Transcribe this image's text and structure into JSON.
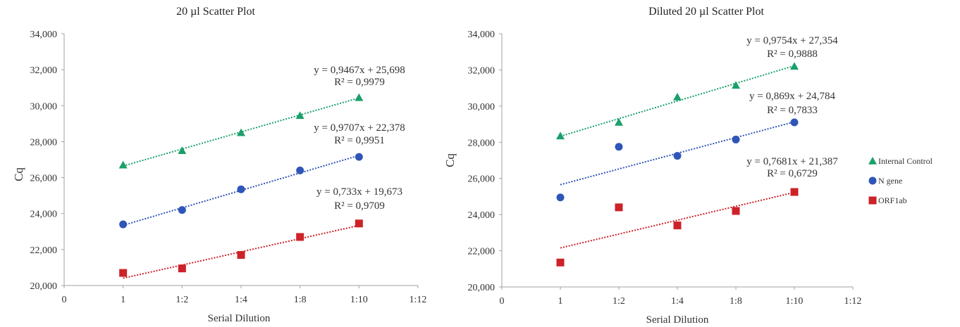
{
  "chart_data": [
    {
      "type": "scatter",
      "title": "20 µl Scatter Plot",
      "xlabel": "Serial Dilution",
      "ylabel": "Cq",
      "x_ticks": [
        "0",
        "1",
        "1:2",
        "1:4",
        "1:8",
        "1:10",
        "1:12"
      ],
      "categories": [
        "1",
        "1:2",
        "1:4",
        "1:8",
        "1:10"
      ],
      "y_ticks": [
        "20,000",
        "22,000",
        "24,000",
        "26,000",
        "28,000",
        "30,000",
        "32,000",
        "34,000"
      ],
      "ylim": [
        20,
        34
      ],
      "series": [
        {
          "name": "Internal Control",
          "marker": "triangle",
          "color": "#1aa06a",
          "values": [
            26.7,
            27.5,
            28.5,
            29.45,
            30.45
          ],
          "trendline": {
            "slope": 0.9467,
            "intercept": 25.698
          }
        },
        {
          "name": "N gene",
          "marker": "circle",
          "color": "#2f55b8",
          "values": [
            23.4,
            24.2,
            25.35,
            26.4,
            27.15
          ],
          "trendline": {
            "slope": 0.9707,
            "intercept": 22.378
          }
        },
        {
          "name": "ORF1ab",
          "marker": "square",
          "color": "#cc2228",
          "values": [
            20.7,
            20.95,
            21.7,
            22.7,
            23.45
          ],
          "trendline": {
            "slope": 0.733,
            "intercept": 19.673
          }
        }
      ],
      "annotations": [
        {
          "eq": "y = 0,9467x + 25,698",
          "r2": "R² = 0,9979"
        },
        {
          "eq": "y = 0,9707x + 22,378",
          "r2": "R² = 0,9951"
        },
        {
          "eq": "y = 0,733x + 19,673",
          "r2": "R² = 0,9709"
        }
      ]
    },
    {
      "type": "scatter",
      "title": "Diluted 20 µl Scatter Plot",
      "xlabel": "Serial Dilution",
      "ylabel": "Cq",
      "x_ticks": [
        "0",
        "1",
        "1:2",
        "1:4",
        "1:8",
        "1:10",
        "1:12"
      ],
      "categories": [
        "1",
        "1:2",
        "1:4",
        "1:8",
        "1:10"
      ],
      "y_ticks": [
        "20,000",
        "22,000",
        "24,000",
        "26,000",
        "28,000",
        "30,000",
        "32,000",
        "34,000"
      ],
      "ylim": [
        20,
        34
      ],
      "legend": {
        "position": "right",
        "items": [
          "Internal Control",
          "N gene",
          "ORF1ab"
        ]
      },
      "series": [
        {
          "name": "Internal Control",
          "marker": "triangle",
          "color": "#1aa06a",
          "values": [
            28.35,
            29.1,
            30.5,
            31.15,
            32.2
          ],
          "trendline": {
            "slope": 0.9754,
            "intercept": 27.354
          }
        },
        {
          "name": "N gene",
          "marker": "circle",
          "color": "#2f55b8",
          "values": [
            24.95,
            27.75,
            27.25,
            28.15,
            29.1
          ],
          "trendline": {
            "slope": 0.869,
            "intercept": 24.784
          }
        },
        {
          "name": "ORF1ab",
          "marker": "square",
          "color": "#cc2228",
          "values": [
            21.35,
            24.4,
            23.4,
            24.2,
            25.25
          ],
          "trendline": {
            "slope": 0.7681,
            "intercept": 21.387
          }
        }
      ],
      "annotations": [
        {
          "eq": "y = 0,9754x + 27,354",
          "r2": "R² = 0,9888"
        },
        {
          "eq": "y = 0,869x + 24,784",
          "r2": "R² = 0,7833"
        },
        {
          "eq": "y = 0,7681x + 21,387",
          "r2": "R² = 0,6729"
        }
      ]
    }
  ]
}
